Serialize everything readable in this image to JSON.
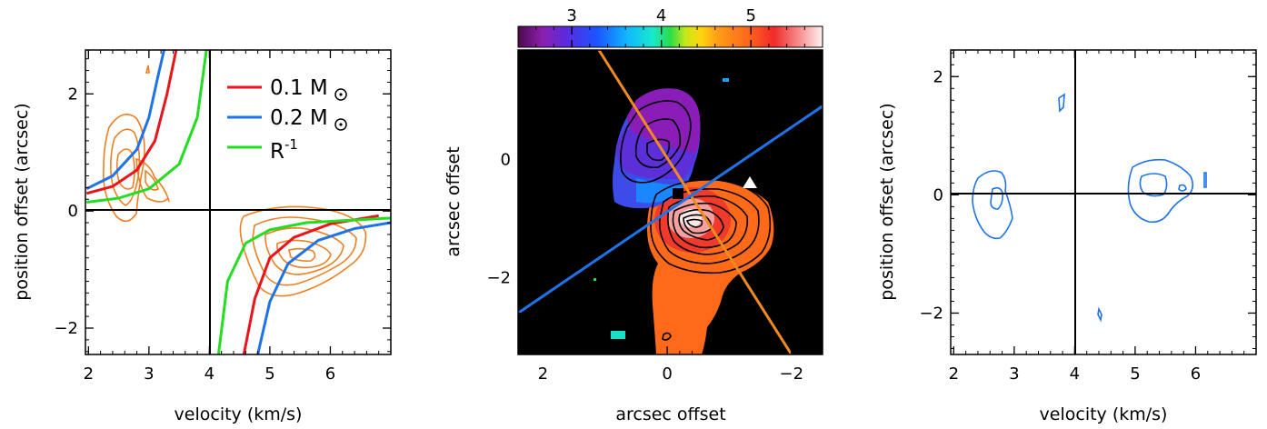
{
  "chart_data": [
    {
      "type": "line",
      "panel": "left",
      "xlabel": "velocity (km/s)",
      "ylabel": "position offset (arcsec)",
      "xlim": [
        1.95,
        7.0
      ],
      "ylim": [
        -2.45,
        2.75
      ],
      "xticks": [
        2,
        3,
        4,
        5,
        6
      ],
      "yticks": [
        -2,
        0,
        2
      ],
      "reference_lines": {
        "v": 4.0,
        "offset": 0.0
      },
      "legend_position": "top-right",
      "series": [
        {
          "name": "0.1 M",
          "color": "#e8151b",
          "label": "0.1 M",
          "sun_symbol": true,
          "branches": [
            {
              "x": [
                1.97,
                2.4,
                2.8,
                3.1,
                3.3,
                3.45
              ],
              "y": [
                0.3,
                0.42,
                0.7,
                1.2,
                2.0,
                2.75
              ]
            },
            {
              "x": [
                4.57,
                4.75,
                5.0,
                5.4,
                6.0,
                6.8
              ],
              "y": [
                -2.45,
                -1.5,
                -0.8,
                -0.45,
                -0.22,
                -0.08
              ]
            }
          ]
        },
        {
          "name": "0.2 M",
          "color": "#1e73e8",
          "label": "0.2 M",
          "sun_symbol": true,
          "branches": [
            {
              "x": [
                1.97,
                2.4,
                2.8,
                3.0,
                3.15,
                3.25
              ],
              "y": [
                0.38,
                0.6,
                1.05,
                1.6,
                2.3,
                2.75
              ]
            },
            {
              "x": [
                4.8,
                5.0,
                5.3,
                5.8,
                6.4,
                7.0
              ],
              "y": [
                -2.45,
                -1.55,
                -0.9,
                -0.5,
                -0.3,
                -0.2
              ]
            }
          ]
        },
        {
          "name": "R",
          "color": "#22dd22",
          "label": "R",
          "exponent": "-1",
          "branches": [
            {
              "x": [
                1.97,
                2.5,
                3.0,
                3.5,
                3.8,
                3.95
              ],
              "y": [
                0.15,
                0.22,
                0.38,
                0.8,
                1.6,
                2.75
              ]
            },
            {
              "x": [
                4.15,
                4.3,
                4.6,
                5.0,
                5.6,
                7.0
              ],
              "y": [
                -2.45,
                -1.2,
                -0.55,
                -0.32,
                -0.2,
                -0.12
              ]
            }
          ]
        }
      ],
      "contour_color": "#f07f22"
    },
    {
      "type": "heatmap",
      "panel": "center",
      "xlabel": "arcsec offset",
      "ylabel": "arcsec offset",
      "xlim": [
        2.4,
        -2.5
      ],
      "ylim": [
        -3.3,
        1.85
      ],
      "xticks": [
        2,
        0,
        -2
      ],
      "yticks": [
        -2,
        0
      ],
      "colorbar": {
        "ticks": [
          3,
          4,
          5
        ],
        "range": [
          2.4,
          5.8
        ],
        "position": "top"
      },
      "lines": [
        {
          "color": "#f08a1e",
          "from": [
            1.1,
            1.85
          ],
          "to": [
            -2.0,
            -3.3
          ]
        },
        {
          "color": "#1e73e8",
          "from": [
            2.4,
            -2.6
          ],
          "to": [
            -2.5,
            0.9
          ]
        }
      ],
      "markers": [
        {
          "shape": "square",
          "color": "#000000",
          "x": 0.3,
          "y": -0.65
        },
        {
          "shape": "triangle",
          "color": "#ffffff",
          "x": -1.45,
          "y": -0.55
        }
      ]
    },
    {
      "type": "line",
      "panel": "right",
      "xlabel": "velocity (km/s)",
      "ylabel": "position offset (arcsec)",
      "xlim": [
        1.95,
        7.0
      ],
      "ylim": [
        -2.7,
        2.45
      ],
      "xticks": [
        2,
        3,
        4,
        5,
        6
      ],
      "yticks": [
        -2,
        0,
        2
      ],
      "reference_lines": {
        "v": 4.0,
        "offset": 0.0
      },
      "contour_color": "#1e73e8"
    }
  ]
}
